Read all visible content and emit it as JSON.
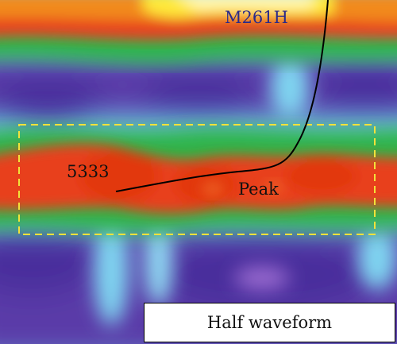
{
  "well_label": "M261H",
  "trace_label": "5333",
  "event_label": "Peak",
  "caption": "Half waveform",
  "colors": {
    "background_purple": "#5a3aa8",
    "trough_blue": "#7fd4f0",
    "mid_green": "#2fb44a",
    "peak_red": "#e8401c",
    "peak_orange": "#f28a1c",
    "top_yellow": "#ffe93a",
    "highlight_box": "#f2e23a",
    "well_path": "#000000",
    "well_label": "#2a2a8a"
  }
}
